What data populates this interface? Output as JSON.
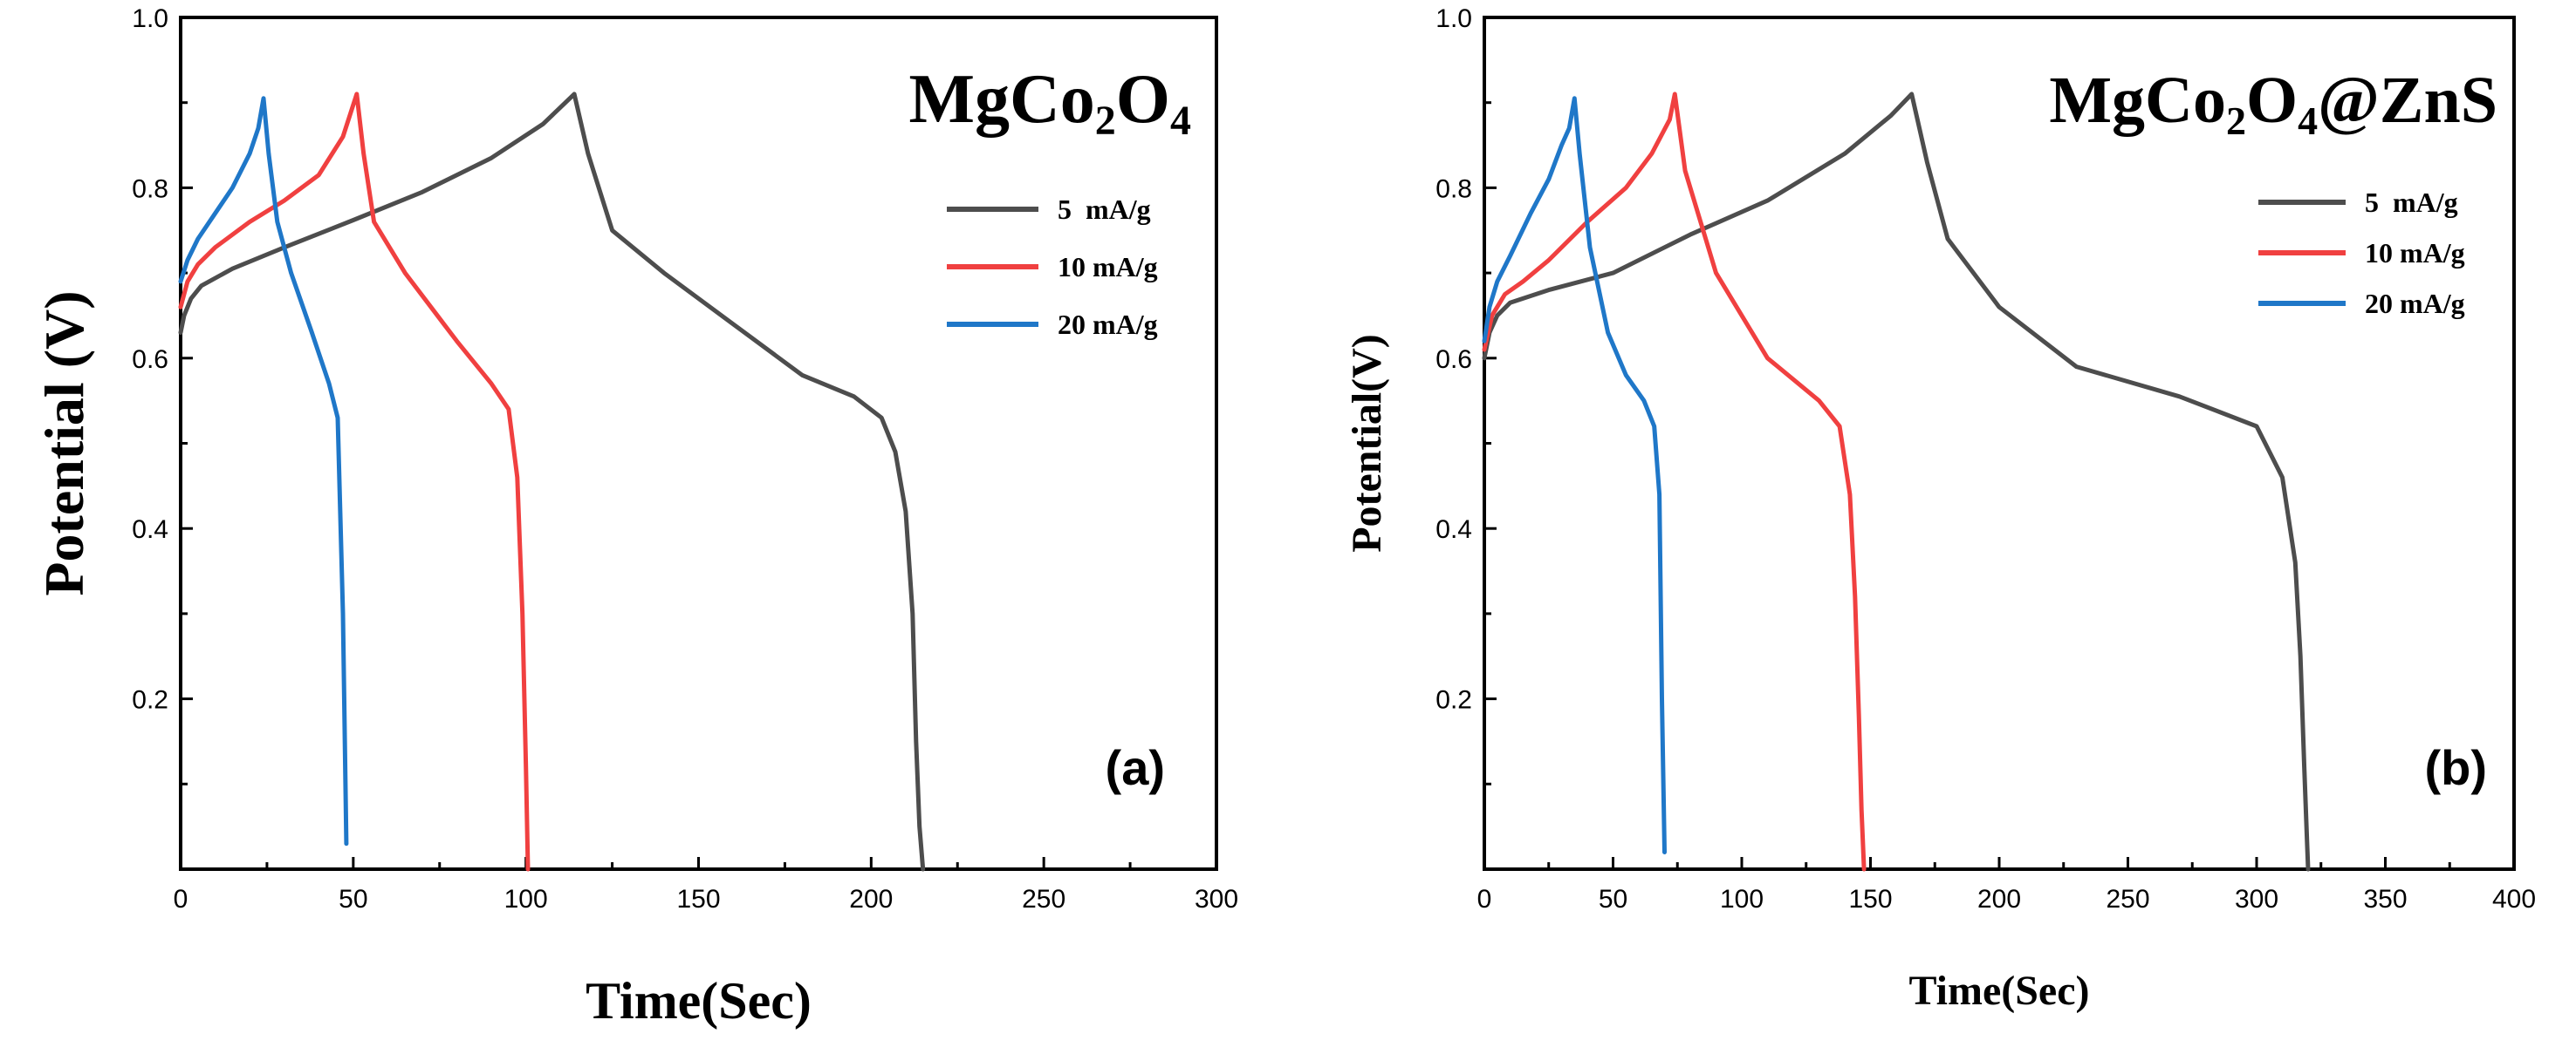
{
  "chart_data": [
    {
      "type": "line",
      "panel": "(a)",
      "title": "MgCo2O4",
      "title_parts": {
        "base": "MgCo",
        "sub1": "2",
        "mid": "O",
        "sub2": "4",
        "tail": ""
      },
      "xlabel": "Time(Sec)",
      "ylabel": "Potential (V)",
      "xlim": [
        0,
        300
      ],
      "ylim": [
        0,
        1.0
      ],
      "xticks": [
        "0",
        "50",
        "100",
        "150",
        "200",
        "250",
        "300"
      ],
      "yticks": [
        "0.2",
        "0.4",
        "0.6",
        "0.8",
        "1.0"
      ],
      "legend_position": "right",
      "grid": false,
      "series": [
        {
          "name": "5  mA/g",
          "color": "#4d4d4d",
          "x": [
            0,
            1,
            3,
            6,
            15,
            30,
            50,
            70,
            90,
            105,
            114,
            118,
            125,
            140,
            160,
            180,
            195,
            203,
            207,
            210,
            212,
            213,
            214,
            215
          ],
          "y": [
            0.63,
            0.65,
            0.67,
            0.685,
            0.705,
            0.73,
            0.762,
            0.795,
            0.835,
            0.875,
            0.91,
            0.84,
            0.75,
            0.7,
            0.64,
            0.58,
            0.555,
            0.53,
            0.49,
            0.42,
            0.3,
            0.15,
            0.05,
            0.0
          ]
        },
        {
          "name": "10 mA/g",
          "color": "#f04040",
          "x": [
            0,
            2,
            5,
            10,
            20,
            30,
            40,
            47,
            51,
            53,
            56,
            65,
            80,
            90,
            95,
            97.5,
            99,
            100,
            100.6
          ],
          "y": [
            0.66,
            0.69,
            0.71,
            0.73,
            0.76,
            0.785,
            0.815,
            0.86,
            0.91,
            0.84,
            0.76,
            0.7,
            0.62,
            0.57,
            0.54,
            0.46,
            0.3,
            0.12,
            0.0
          ]
        },
        {
          "name": "20 mA/g",
          "color": "#1f77c8",
          "x": [
            0,
            2,
            5,
            10,
            15,
            20,
            22.5,
            24,
            25.5,
            28,
            32,
            38,
            43,
            45.5,
            47,
            48
          ],
          "y": [
            0.69,
            0.715,
            0.74,
            0.77,
            0.8,
            0.84,
            0.87,
            0.905,
            0.84,
            0.76,
            0.7,
            0.63,
            0.57,
            0.53,
            0.3,
            0.03
          ]
        }
      ]
    },
    {
      "type": "line",
      "panel": "(b)",
      "title": "MgCo2O4@ZnS",
      "title_parts": {
        "base": "MgCo",
        "sub1": "2",
        "mid": "O",
        "sub2": "4",
        "tail": "@ZnS"
      },
      "xlabel": "Time(Sec)",
      "ylabel": "Potential(V)",
      "xlim": [
        0,
        400
      ],
      "ylim": [
        0,
        1.0
      ],
      "xticks": [
        "0",
        "50",
        "100",
        "150",
        "200",
        "250",
        "300",
        "350",
        "400"
      ],
      "yticks": [
        "0.2",
        "0.4",
        "0.6",
        "0.8",
        "1.0"
      ],
      "legend_position": "right",
      "grid": false,
      "series": [
        {
          "name": "5  mA/g",
          "color": "#4d4d4d",
          "x": [
            0,
            2,
            5,
            10,
            25,
            50,
            80,
            110,
            140,
            158,
            166,
            172,
            180,
            200,
            230,
            270,
            300,
            310,
            315,
            317,
            318.5,
            319.5,
            320
          ],
          "y": [
            0.6,
            0.63,
            0.65,
            0.665,
            0.68,
            0.7,
            0.745,
            0.785,
            0.84,
            0.885,
            0.91,
            0.83,
            0.74,
            0.66,
            0.59,
            0.555,
            0.52,
            0.46,
            0.36,
            0.25,
            0.12,
            0.04,
            0.0
          ]
        },
        {
          "name": "10 mA/g",
          "color": "#f04040",
          "x": [
            0,
            3,
            8,
            15,
            25,
            40,
            55,
            65,
            72,
            74,
            78,
            90,
            110,
            130,
            138,
            142,
            144,
            145.5,
            146.5,
            147.5
          ],
          "y": [
            0.61,
            0.65,
            0.675,
            0.69,
            0.715,
            0.76,
            0.8,
            0.84,
            0.88,
            0.91,
            0.82,
            0.7,
            0.6,
            0.55,
            0.52,
            0.44,
            0.32,
            0.18,
            0.07,
            0.0
          ]
        },
        {
          "name": "20 mA/g",
          "color": "#1f77c8",
          "x": [
            0,
            2,
            5,
            10,
            18,
            25,
            30,
            33,
            35,
            37,
            41,
            48,
            55,
            62,
            66,
            68,
            69,
            70
          ],
          "y": [
            0.62,
            0.66,
            0.69,
            0.72,
            0.77,
            0.81,
            0.85,
            0.87,
            0.905,
            0.84,
            0.73,
            0.63,
            0.58,
            0.55,
            0.52,
            0.44,
            0.2,
            0.02
          ]
        }
      ]
    }
  ]
}
